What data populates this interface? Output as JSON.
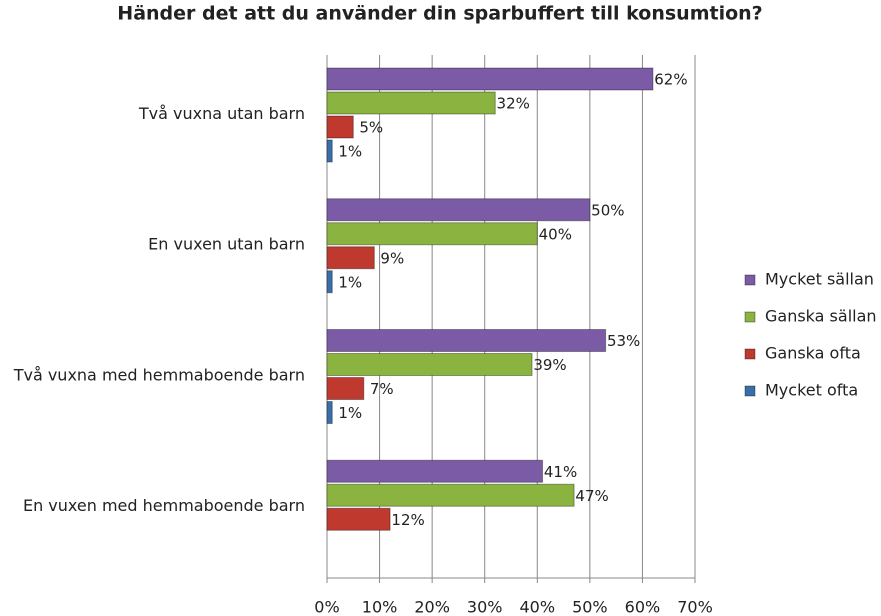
{
  "chart_data": {
    "type": "hbar",
    "title": "Händer det att du använder din sparbuffert till konsumtion?",
    "categories": [
      "Två vuxna utan barn",
      "En vuxen utan barn",
      "Två vuxna med hemmaboende barn",
      "En vuxen med hemmaboende barn"
    ],
    "series": [
      {
        "name": "Mycket sällan",
        "color": "#7b5aa6",
        "values": [
          62,
          50,
          53,
          41
        ],
        "value_labels": [
          "62%",
          "50%",
          "53%",
          "41%"
        ]
      },
      {
        "name": "Ganska sällan",
        "color": "#8bb33f",
        "values": [
          32,
          40,
          39,
          47
        ],
        "value_labels": [
          "32%",
          "40%",
          "39%",
          "47%"
        ]
      },
      {
        "name": "Ganska ofta",
        "color": "#c0392f",
        "values": [
          5,
          9,
          7,
          12
        ],
        "value_labels": [
          "5%",
          "9%",
          "7%",
          "12%"
        ]
      },
      {
        "name": "Mycket ofta",
        "color": "#3a6ea8",
        "values": [
          1,
          1,
          1,
          null
        ],
        "value_labels": [
          "1%",
          "1%",
          "1%",
          null
        ]
      }
    ],
    "xlim": [
      0,
      70
    ],
    "xticks": [
      {
        "value": 0,
        "label": "0%"
      },
      {
        "value": 10,
        "label": "10%"
      },
      {
        "value": 20,
        "label": "20%"
      },
      {
        "value": 30,
        "label": "30%"
      },
      {
        "value": 40,
        "label": "40%"
      },
      {
        "value": 50,
        "label": "50%"
      },
      {
        "value": 60,
        "label": "60%"
      },
      {
        "value": 70,
        "label": "70%"
      }
    ],
    "grid": true,
    "legend": "right"
  }
}
